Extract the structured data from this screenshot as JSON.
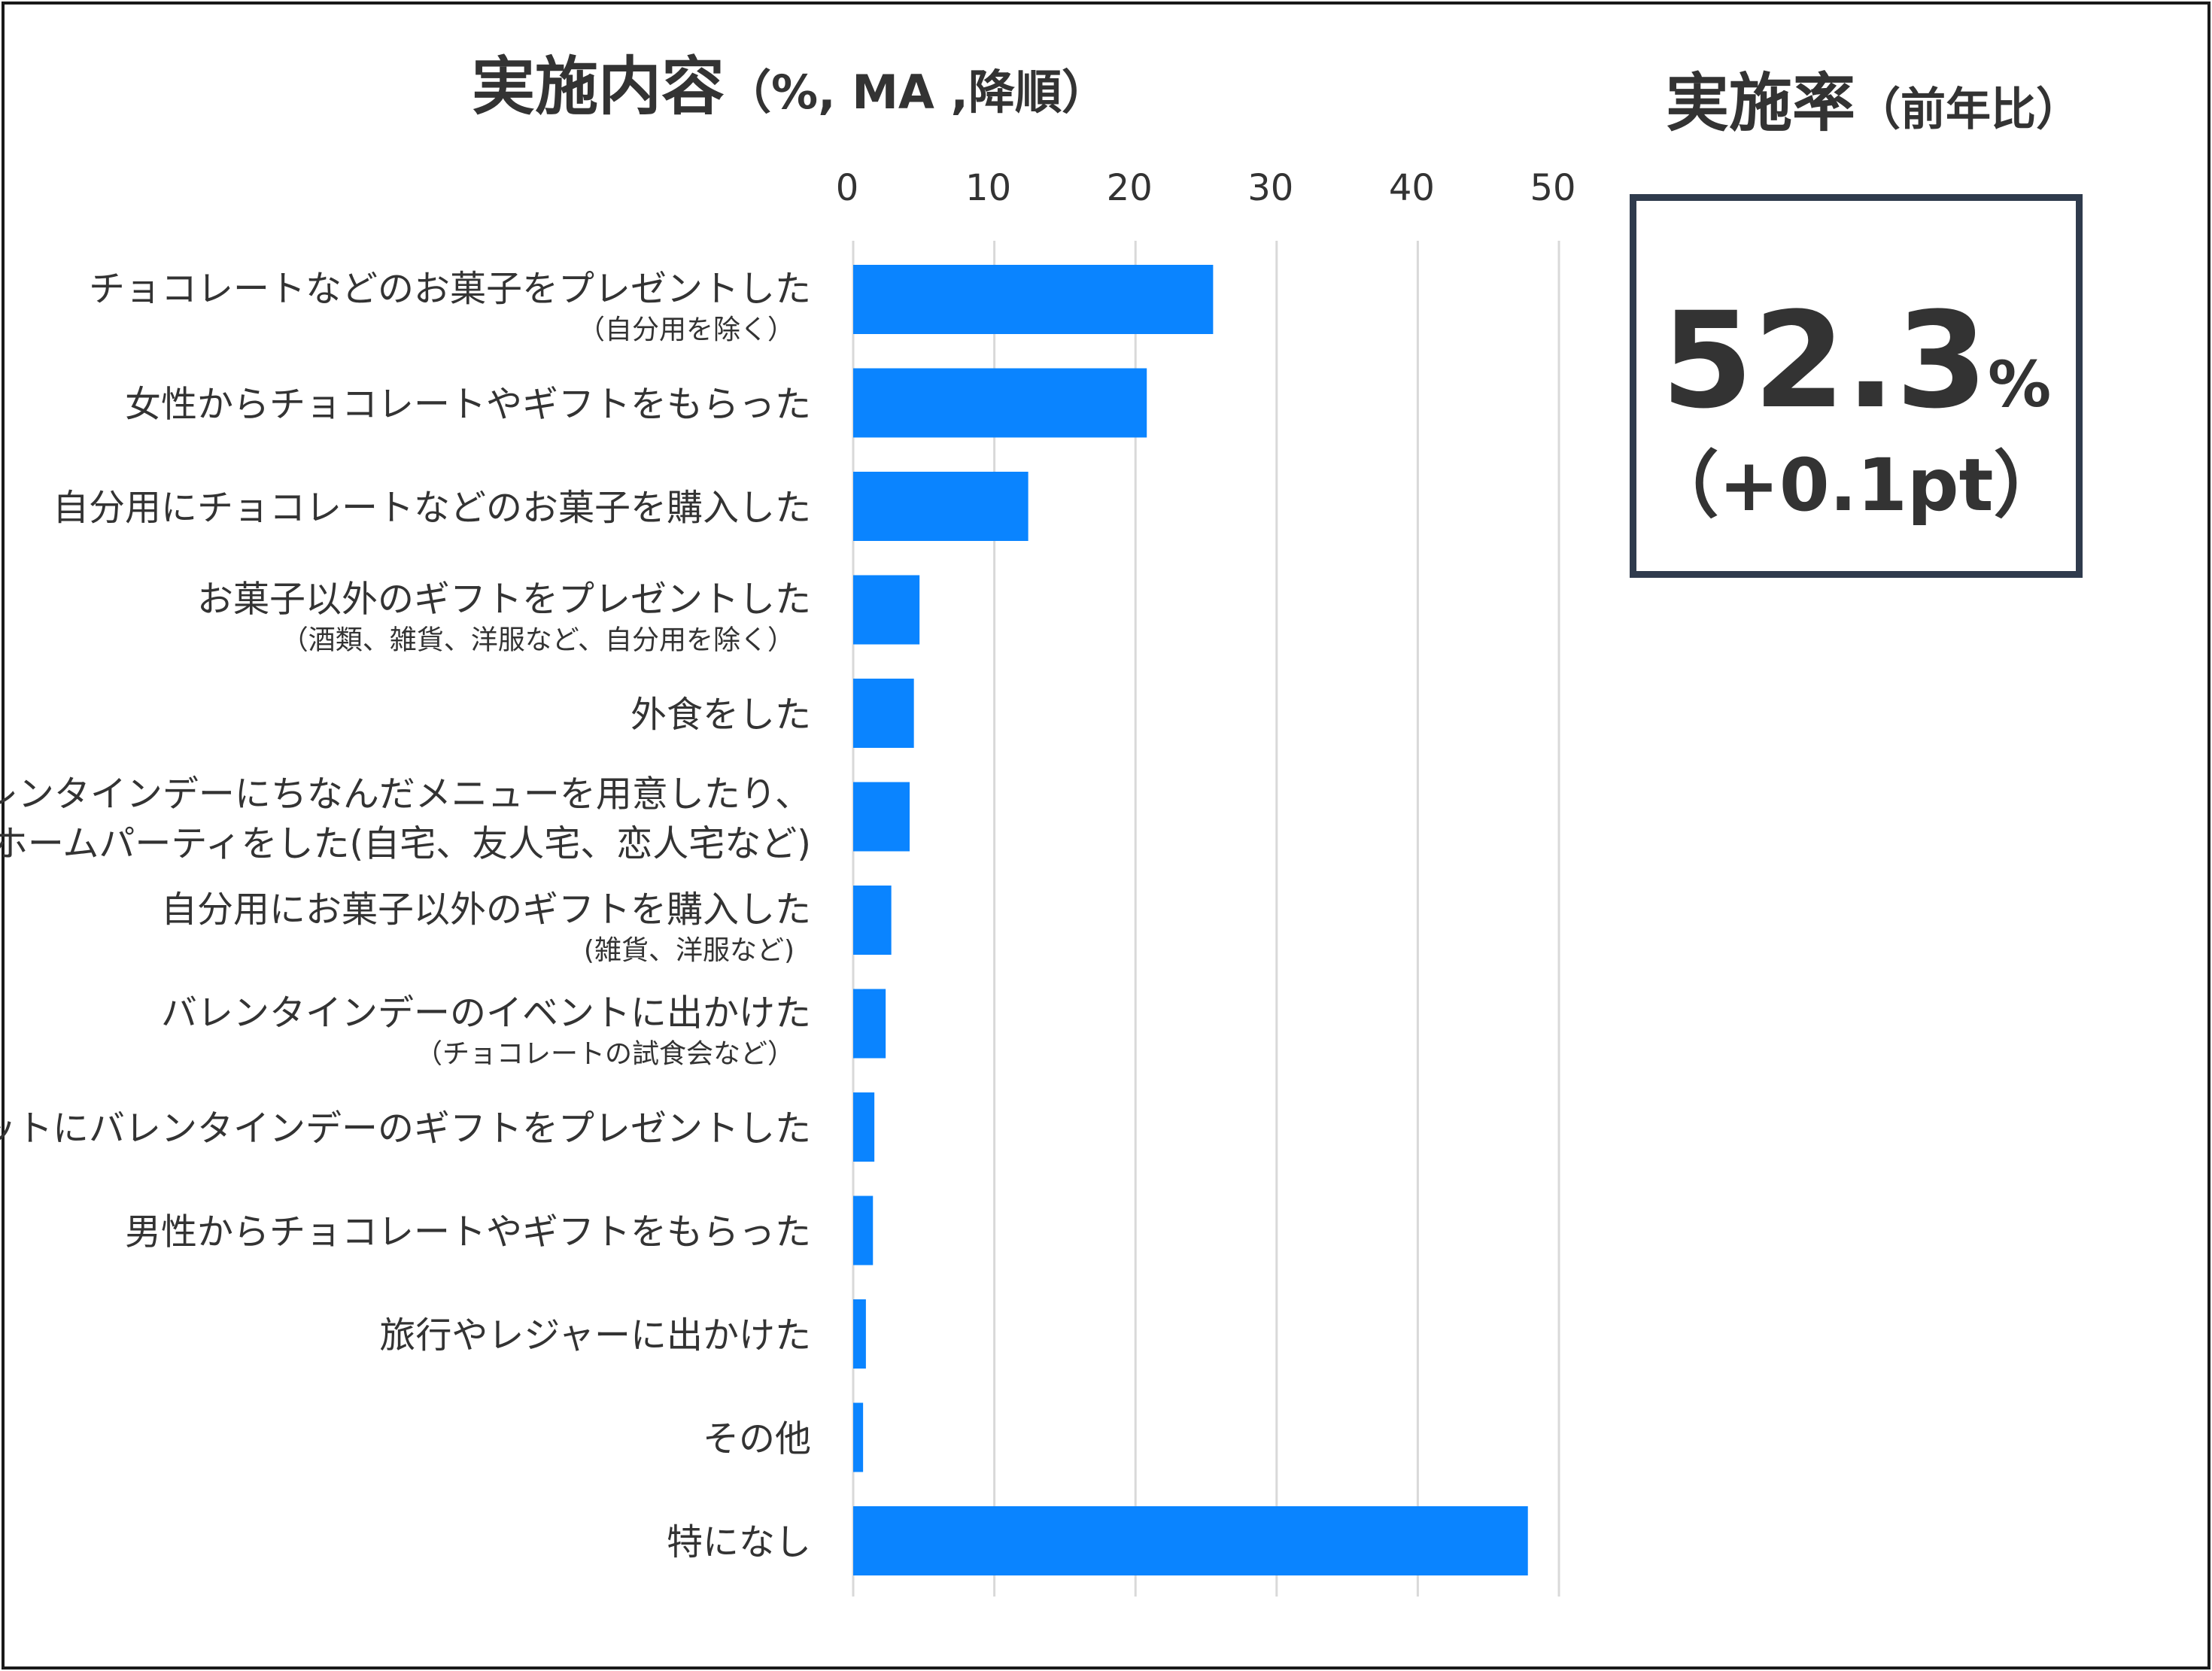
{
  "chart_data": {
    "type": "bar",
    "orientation": "horizontal",
    "title": "実施内容",
    "title_note": "（%, MA ,降順）",
    "xlim": [
      0,
      50
    ],
    "x_ticks": [
      "0",
      "10",
      "20",
      "30",
      "40",
      "50"
    ],
    "grid": true,
    "bar_color": "#0a84ff",
    "categories": [
      {
        "label": "チョコレートなどのお菓子をプレゼントした",
        "note": "（自分用を除く）",
        "value": 25.5
      },
      {
        "label": "女性からチョコレートやギフトをもらった",
        "note": "",
        "value": 20.8
      },
      {
        "label": "自分用にチョコレートなどのお菓子を購入した",
        "note": "",
        "value": 12.4
      },
      {
        "label": "お菓子以外のギフトをプレゼントした",
        "note": "（酒類、雑貨、洋服など、自分用を除く）",
        "value": 4.7
      },
      {
        "label": "外食をした",
        "note": "",
        "value": 4.3
      },
      {
        "label": "家でバレンタインデーにちなんだメニューを用意したり、",
        "label2": "ホームパーティをした(自宅、友人宅、恋人宅など)",
        "note": "",
        "value": 4.0
      },
      {
        "label": "自分用にお菓子以外のギフトを購入した",
        "note": "(雑貨、洋服など)",
        "value": 2.7
      },
      {
        "label": "バレンタインデーのイベントに出かけた",
        "note": "（チョコレートの試食会など）",
        "value": 2.3
      },
      {
        "label": "ペットにバレンタインデーのギフトをプレゼントした",
        "note": "",
        "value": 1.5
      },
      {
        "label": "男性からチョコレートやギフトをもらった",
        "note": "",
        "value": 1.4
      },
      {
        "label": "旅行やレジャーに出かけた",
        "note": "",
        "value": 0.9
      },
      {
        "label": "その他",
        "note": "",
        "value": 0.7
      },
      {
        "label": "特になし",
        "note": "",
        "value": 47.8
      }
    ]
  },
  "rate_panel": {
    "title": "実施率",
    "title_note": "（前年比）",
    "value": "52.3",
    "unit": "%",
    "change": "（+0.1pt）"
  }
}
